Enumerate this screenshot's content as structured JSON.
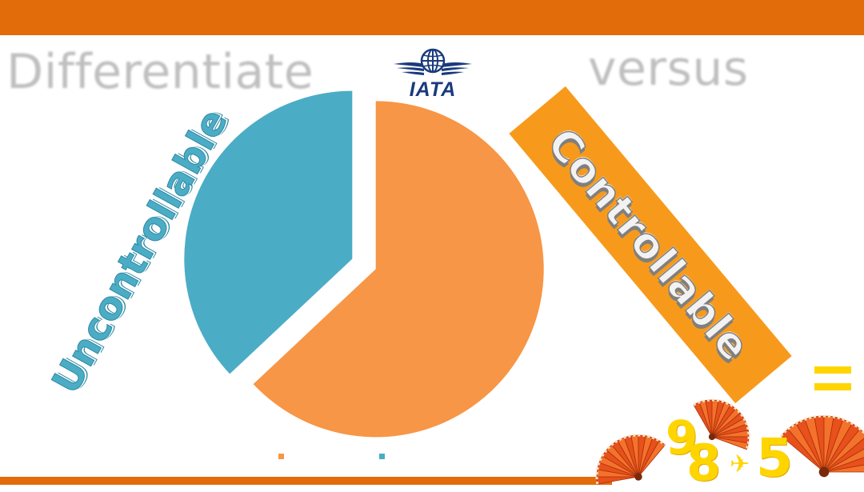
{
  "slide": {
    "headline_left": "Differentiate",
    "headline_right": "versus",
    "logo_text": "IATA",
    "label_uncontrollable": "Uncontrollable",
    "label_controllable": "Controllable",
    "score": {
      "first": "9",
      "second": "8",
      "third": "5"
    },
    "icons": [
      "iata-logo-icon",
      "equals-icon",
      "plane-icon",
      "hand-fan-icon"
    ]
  },
  "colors": {
    "accent_bar": "#e36c0a",
    "controllable": "#f79646",
    "uncontrollable": "#4bacc6",
    "controllable_box": "#f79a1b",
    "headline": "#bfbfbf",
    "score": "#ffd500"
  },
  "chart_data": {
    "type": "pie",
    "title": "",
    "series": [
      {
        "name": "",
        "values": [
          63,
          37
        ]
      }
    ],
    "categories": [
      "Controllable",
      "Uncontrollable"
    ],
    "slice_colors": [
      "#f79646",
      "#4bacc6"
    ],
    "exploded": true,
    "legend": "bottom",
    "legend_labels_visible": false
  }
}
